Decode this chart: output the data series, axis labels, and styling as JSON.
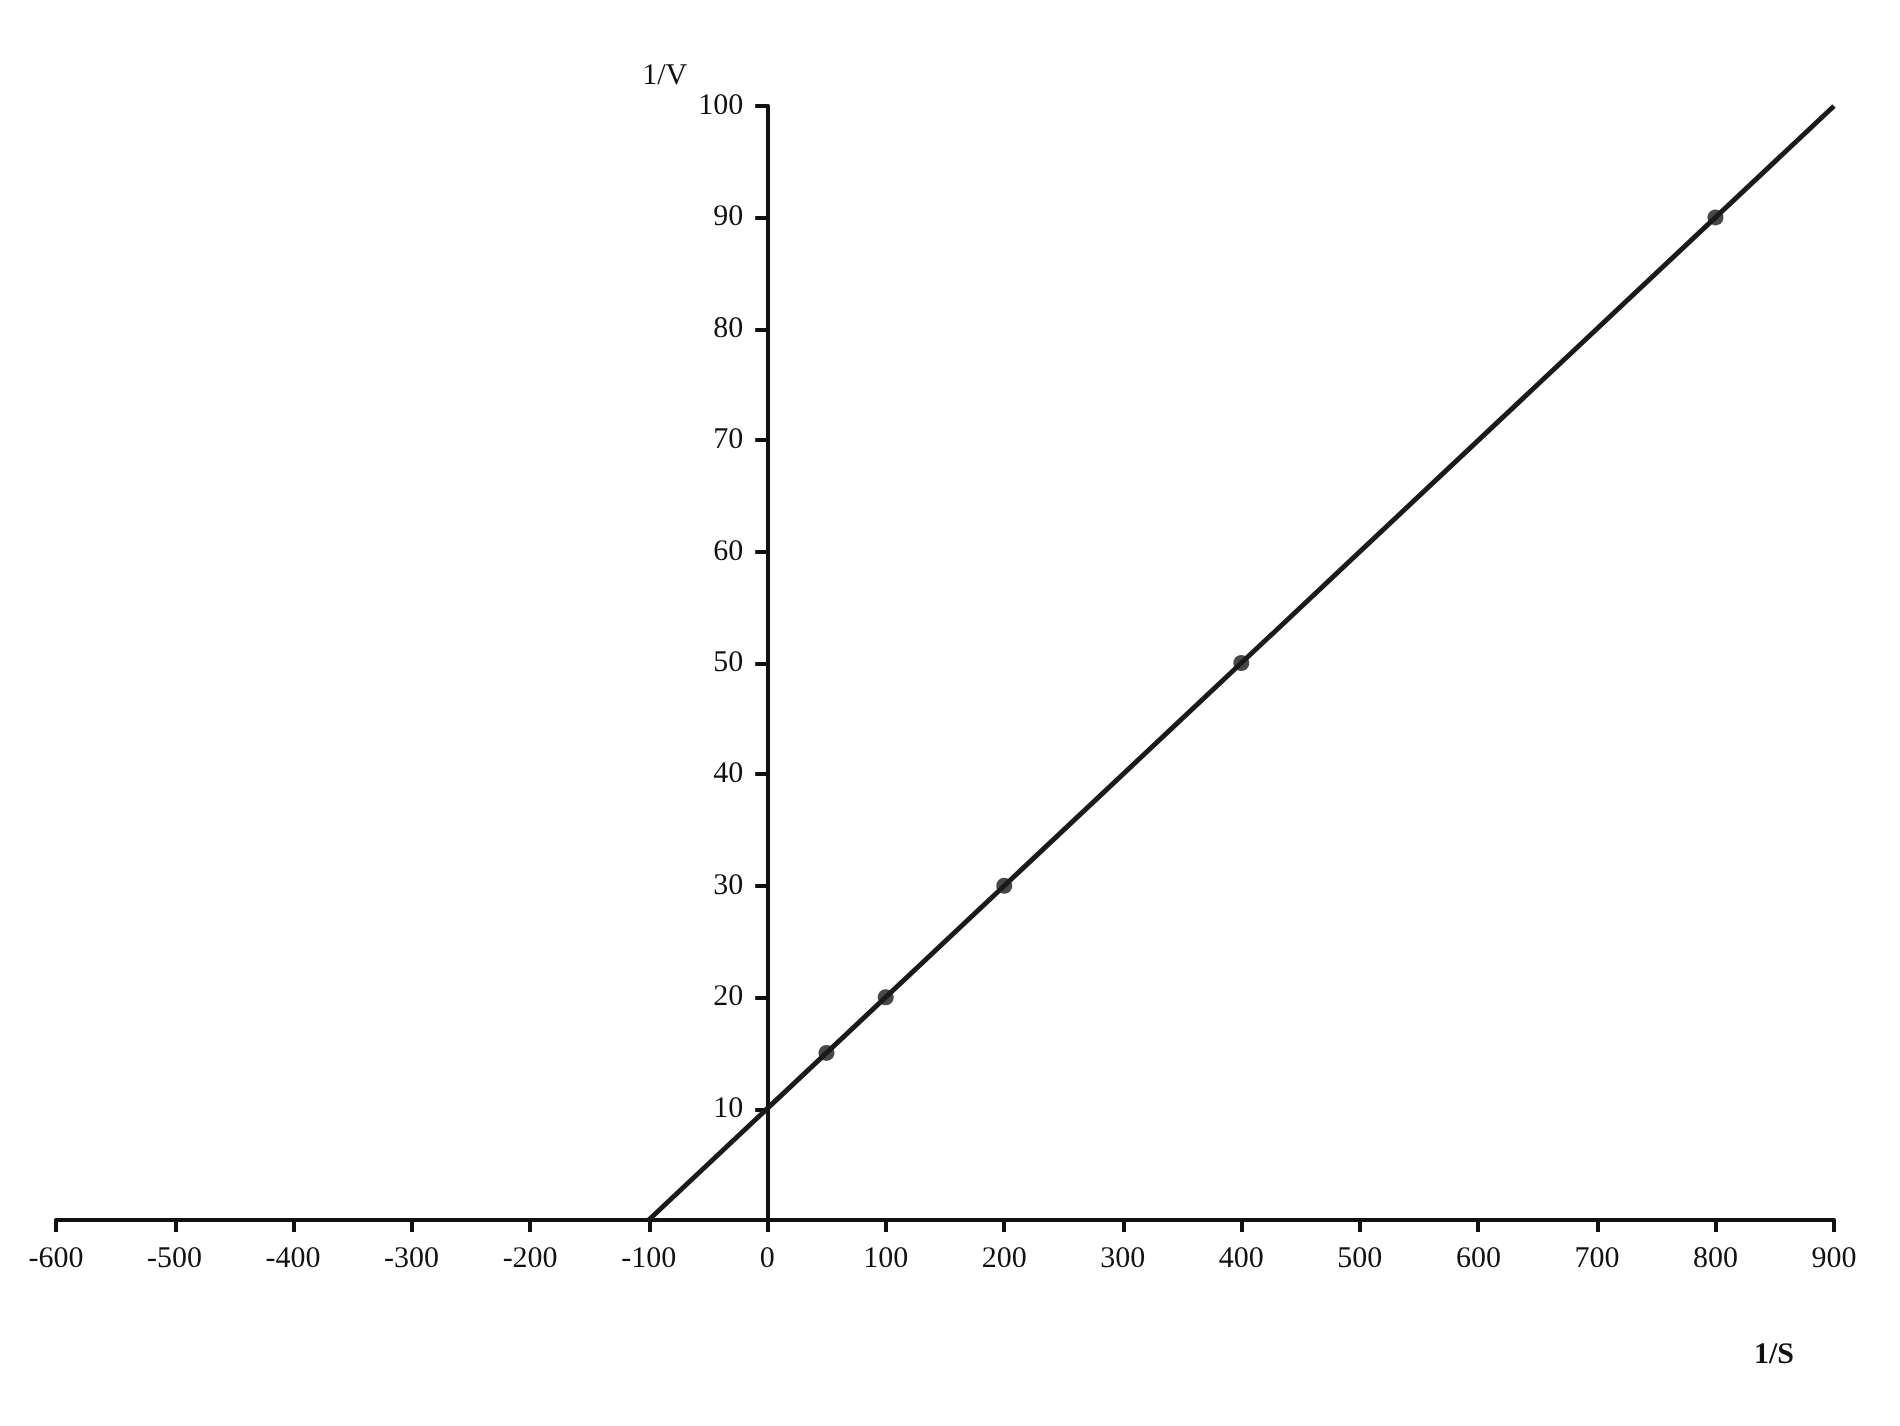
{
  "chart_data": {
    "type": "scatter",
    "xlabel": "1/S",
    "ylabel": "1/V",
    "x": [
      50,
      100,
      200,
      400,
      800
    ],
    "series": [
      {
        "type": "scatter",
        "color": "#1a1a1a",
        "values": [
          15,
          20,
          30,
          50,
          90
        ],
        "marker": "circle"
      },
      {
        "type": "line",
        "color": "#1a1a1a",
        "x": [
          -100,
          900
        ],
        "values": [
          0,
          100
        ],
        "marker": "none",
        "line_style": "solid"
      }
    ],
    "xlim": [
      -600,
      900
    ],
    "ylim": [
      0,
      100
    ],
    "xticks": [
      -600,
      -500,
      -400,
      -300,
      -200,
      -100,
      0,
      100,
      200,
      300,
      400,
      500,
      600,
      700,
      800,
      900
    ],
    "yticks": [
      10,
      20,
      30,
      40,
      50,
      60,
      70,
      80,
      90,
      100
    ],
    "grid": false
  }
}
